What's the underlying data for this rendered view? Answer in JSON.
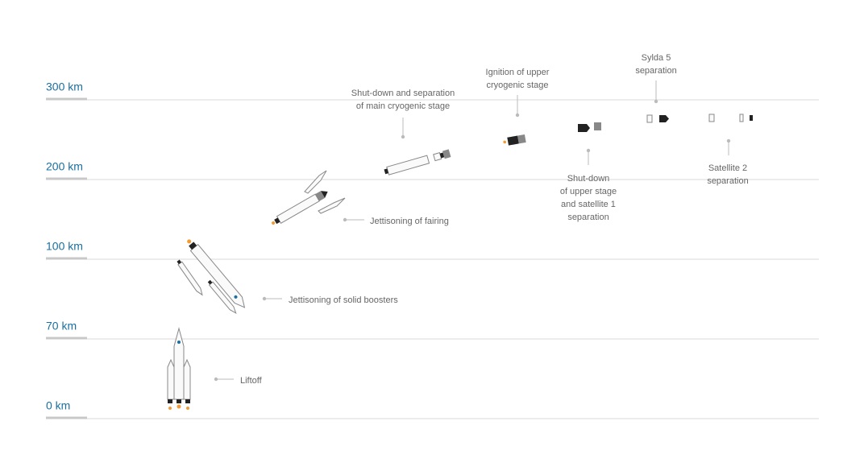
{
  "levels": [
    "300 km",
    "200 km",
    "100 km",
    "70 km",
    "0 km"
  ],
  "annotations": [
    {
      "lines": [
        "Shut-down and separation",
        "of main cryogenic stage"
      ]
    },
    {
      "lines": [
        "Ignition of upper",
        "cryogenic stage"
      ]
    },
    {
      "lines": [
        "Sylda 5",
        "separation"
      ]
    },
    {
      "lines": [
        "Shut-down",
        "of upper stage",
        "and satellite 1",
        "separation"
      ]
    },
    {
      "lines": [
        "Satellite 2",
        "separation"
      ]
    },
    {
      "lines": [
        "Jettisoning of fairing"
      ]
    },
    {
      "lines": [
        "Jettisoning of solid boosters"
      ]
    },
    {
      "lines": [
        "Liftoff"
      ]
    }
  ]
}
